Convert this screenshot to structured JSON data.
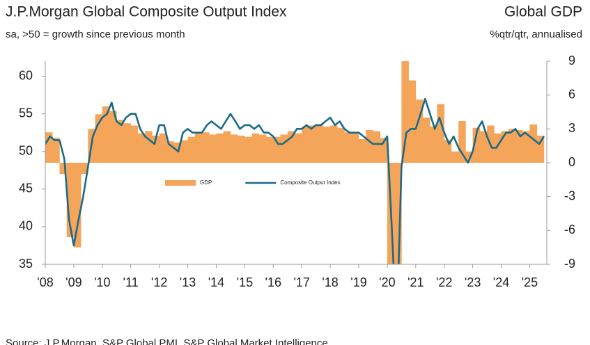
{
  "chart_data": {
    "type": "combo",
    "title": "J.P.Morgan Global Composite Output Index",
    "subtitle": "sa, >50 = growth since previous month",
    "y2_title": "Global GDP",
    "y2_subtitle": "%qtr/qtr, annualised",
    "source": "Source: J.P.Morgan, S&P Global PMI, S&P Global Market Intelligence",
    "xlim": [
      2008,
      2025.6
    ],
    "xticks": [
      {
        "value": 2008,
        "label": "'08"
      },
      {
        "value": 2009,
        "label": "'09"
      },
      {
        "value": 2010,
        "label": "'10"
      },
      {
        "value": 2011,
        "label": "'11"
      },
      {
        "value": 2012,
        "label": "'12"
      },
      {
        "value": 2013,
        "label": "'13"
      },
      {
        "value": 2014,
        "label": "'14"
      },
      {
        "value": 2015,
        "label": "'15"
      },
      {
        "value": 2016,
        "label": "'16"
      },
      {
        "value": 2017,
        "label": "'17"
      },
      {
        "value": 2018,
        "label": "'18"
      },
      {
        "value": 2019,
        "label": "'19"
      },
      {
        "value": 2020,
        "label": "'20"
      },
      {
        "value": 2021,
        "label": "'21"
      },
      {
        "value": 2022,
        "label": "'22"
      },
      {
        "value": 2023,
        "label": "'23"
      },
      {
        "value": 2024,
        "label": "'24"
      },
      {
        "value": 2025,
        "label": "'25"
      }
    ],
    "ylim": [
      35,
      62
    ],
    "yticks": [
      35,
      40,
      45,
      50,
      55,
      60
    ],
    "y2lim": [
      -9,
      9
    ],
    "y2ticks": [
      -9,
      -6,
      -3,
      0,
      3,
      6,
      9
    ],
    "legend": "center",
    "series": [
      {
        "name": "GDP",
        "type": "bar",
        "axis": "y2",
        "color": "#f5a55a",
        "x": [
          2008,
          2008.25,
          2008.5,
          2008.75,
          2009,
          2009.25,
          2009.5,
          2009.75,
          2010,
          2010.25,
          2010.5,
          2010.75,
          2011,
          2011.25,
          2011.5,
          2011.75,
          2012,
          2012.25,
          2012.5,
          2012.75,
          2013,
          2013.25,
          2013.5,
          2013.75,
          2014,
          2014.25,
          2014.5,
          2014.75,
          2015,
          2015.25,
          2015.5,
          2015.75,
          2016,
          2016.25,
          2016.5,
          2016.75,
          2017,
          2017.25,
          2017.5,
          2017.75,
          2018,
          2018.25,
          2018.5,
          2018.75,
          2019,
          2019.25,
          2019.5,
          2019.75,
          2020,
          2020.25,
          2020.5,
          2020.75,
          2021,
          2021.25,
          2021.5,
          2021.75,
          2022,
          2022.25,
          2022.5,
          2022.75,
          2023,
          2023.25,
          2023.5,
          2023.75,
          2024,
          2024.25,
          2024.5,
          2024.75,
          2025,
          2025.25
        ],
        "values": [
          2.7,
          2.2,
          -1.0,
          -6.6,
          -7.5,
          -1.0,
          3.0,
          4.3,
          5.0,
          4.6,
          3.8,
          3.5,
          3.3,
          2.6,
          2.8,
          2.4,
          2.6,
          1.9,
          1.8,
          2.0,
          2.3,
          2.6,
          2.7,
          2.5,
          2.6,
          2.8,
          2.5,
          2.4,
          2.3,
          2.6,
          2.5,
          2.3,
          2.3,
          2.5,
          2.8,
          2.6,
          3.2,
          3.3,
          3.4,
          3.2,
          3.3,
          3.1,
          2.7,
          2.6,
          2.1,
          2.9,
          2.8,
          2.2,
          -10.5,
          -9.5,
          9.5,
          7.3,
          5.6,
          4.0,
          3.2,
          5.2,
          2.0,
          1.0,
          3.7,
          1.0,
          3.1,
          2.8,
          3.3,
          2.6,
          2.8,
          3.0,
          2.9,
          2.8,
          3.4,
          2.4
        ]
      },
      {
        "name": "Composite Output Index",
        "type": "line",
        "color": "#1b6a86",
        "x": [
          2008,
          2008.17,
          2008.33,
          2008.5,
          2008.67,
          2008.83,
          2009,
          2009.17,
          2009.33,
          2009.5,
          2009.67,
          2009.83,
          2010,
          2010.17,
          2010.33,
          2010.5,
          2010.67,
          2010.83,
          2011,
          2011.17,
          2011.33,
          2011.5,
          2011.67,
          2011.83,
          2012,
          2012.17,
          2012.33,
          2012.5,
          2012.67,
          2012.83,
          2013,
          2013.17,
          2013.33,
          2013.5,
          2013.67,
          2013.83,
          2014,
          2014.17,
          2014.33,
          2014.5,
          2014.67,
          2014.83,
          2015,
          2015.17,
          2015.33,
          2015.5,
          2015.67,
          2015.83,
          2016,
          2016.17,
          2016.33,
          2016.5,
          2016.67,
          2016.83,
          2017,
          2017.17,
          2017.33,
          2017.5,
          2017.67,
          2017.83,
          2018,
          2018.17,
          2018.33,
          2018.5,
          2018.67,
          2018.83,
          2019,
          2019.17,
          2019.33,
          2019.5,
          2019.67,
          2019.83,
          2020,
          2020.17,
          2020.33,
          2020.5,
          2020.67,
          2020.83,
          2021,
          2021.17,
          2021.33,
          2021.5,
          2021.67,
          2021.83,
          2022,
          2022.17,
          2022.33,
          2022.5,
          2022.67,
          2022.83,
          2023,
          2023.17,
          2023.33,
          2023.5,
          2023.67,
          2023.83,
          2024,
          2024.17,
          2024.33,
          2024.5,
          2024.67,
          2024.83,
          2025,
          2025.17,
          2025.33,
          2025.5
        ],
        "values": [
          51,
          52,
          51.5,
          51.5,
          49,
          41,
          37.5,
          41,
          44,
          48,
          52,
          53.5,
          54.5,
          55,
          56.5,
          54,
          53.5,
          54.5,
          55,
          55,
          53,
          52,
          51.5,
          51,
          53.5,
          53.5,
          51,
          50.5,
          50,
          52.5,
          53,
          52.5,
          52.5,
          52.5,
          53.5,
          54,
          53.5,
          53,
          54,
          55,
          54,
          53,
          53.5,
          53.5,
          53,
          53.5,
          52.5,
          52.5,
          52,
          51,
          51,
          51.5,
          52,
          53,
          53,
          53.5,
          53,
          53.5,
          53.5,
          54,
          54.5,
          53.5,
          54,
          53,
          52.5,
          52.5,
          52.5,
          52,
          51.5,
          51,
          51,
          51,
          52,
          39,
          26,
          48,
          52.5,
          53,
          53,
          55,
          57,
          55,
          53,
          54.5,
          52.5,
          51,
          52,
          50.5,
          49.5,
          48.5,
          50,
          53,
          54,
          52,
          50.5,
          50.5,
          51.5,
          52.5,
          52.5,
          53,
          52,
          52.5,
          52,
          51.5,
          51,
          52
        ]
      }
    ]
  }
}
